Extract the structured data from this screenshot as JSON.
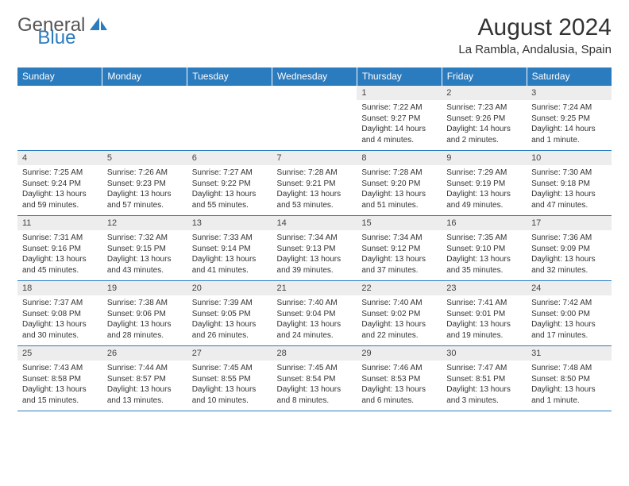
{
  "logo": {
    "text1": "General",
    "text2": "Blue"
  },
  "title": "August 2024",
  "subtitle": "La Rambla, Andalusia, Spain",
  "colors": {
    "headerBg": "#2b7bbf",
    "dayBg": "#ededed",
    "border": "#2b7bbf",
    "text": "#333"
  },
  "dayHeaders": [
    "Sunday",
    "Monday",
    "Tuesday",
    "Wednesday",
    "Thursday",
    "Friday",
    "Saturday"
  ],
  "weeks": [
    [
      null,
      null,
      null,
      null,
      {
        "n": "1",
        "sr": "7:22 AM",
        "ss": "9:27 PM",
        "dl": "14 hours and 4 minutes."
      },
      {
        "n": "2",
        "sr": "7:23 AM",
        "ss": "9:26 PM",
        "dl": "14 hours and 2 minutes."
      },
      {
        "n": "3",
        "sr": "7:24 AM",
        "ss": "9:25 PM",
        "dl": "14 hours and 1 minute."
      }
    ],
    [
      {
        "n": "4",
        "sr": "7:25 AM",
        "ss": "9:24 PM",
        "dl": "13 hours and 59 minutes."
      },
      {
        "n": "5",
        "sr": "7:26 AM",
        "ss": "9:23 PM",
        "dl": "13 hours and 57 minutes."
      },
      {
        "n": "6",
        "sr": "7:27 AM",
        "ss": "9:22 PM",
        "dl": "13 hours and 55 minutes."
      },
      {
        "n": "7",
        "sr": "7:28 AM",
        "ss": "9:21 PM",
        "dl": "13 hours and 53 minutes."
      },
      {
        "n": "8",
        "sr": "7:28 AM",
        "ss": "9:20 PM",
        "dl": "13 hours and 51 minutes."
      },
      {
        "n": "9",
        "sr": "7:29 AM",
        "ss": "9:19 PM",
        "dl": "13 hours and 49 minutes."
      },
      {
        "n": "10",
        "sr": "7:30 AM",
        "ss": "9:18 PM",
        "dl": "13 hours and 47 minutes."
      }
    ],
    [
      {
        "n": "11",
        "sr": "7:31 AM",
        "ss": "9:16 PM",
        "dl": "13 hours and 45 minutes."
      },
      {
        "n": "12",
        "sr": "7:32 AM",
        "ss": "9:15 PM",
        "dl": "13 hours and 43 minutes."
      },
      {
        "n": "13",
        "sr": "7:33 AM",
        "ss": "9:14 PM",
        "dl": "13 hours and 41 minutes."
      },
      {
        "n": "14",
        "sr": "7:34 AM",
        "ss": "9:13 PM",
        "dl": "13 hours and 39 minutes."
      },
      {
        "n": "15",
        "sr": "7:34 AM",
        "ss": "9:12 PM",
        "dl": "13 hours and 37 minutes."
      },
      {
        "n": "16",
        "sr": "7:35 AM",
        "ss": "9:10 PM",
        "dl": "13 hours and 35 minutes."
      },
      {
        "n": "17",
        "sr": "7:36 AM",
        "ss": "9:09 PM",
        "dl": "13 hours and 32 minutes."
      }
    ],
    [
      {
        "n": "18",
        "sr": "7:37 AM",
        "ss": "9:08 PM",
        "dl": "13 hours and 30 minutes."
      },
      {
        "n": "19",
        "sr": "7:38 AM",
        "ss": "9:06 PM",
        "dl": "13 hours and 28 minutes."
      },
      {
        "n": "20",
        "sr": "7:39 AM",
        "ss": "9:05 PM",
        "dl": "13 hours and 26 minutes."
      },
      {
        "n": "21",
        "sr": "7:40 AM",
        "ss": "9:04 PM",
        "dl": "13 hours and 24 minutes."
      },
      {
        "n": "22",
        "sr": "7:40 AM",
        "ss": "9:02 PM",
        "dl": "13 hours and 22 minutes."
      },
      {
        "n": "23",
        "sr": "7:41 AM",
        "ss": "9:01 PM",
        "dl": "13 hours and 19 minutes."
      },
      {
        "n": "24",
        "sr": "7:42 AM",
        "ss": "9:00 PM",
        "dl": "13 hours and 17 minutes."
      }
    ],
    [
      {
        "n": "25",
        "sr": "7:43 AM",
        "ss": "8:58 PM",
        "dl": "13 hours and 15 minutes."
      },
      {
        "n": "26",
        "sr": "7:44 AM",
        "ss": "8:57 PM",
        "dl": "13 hours and 13 minutes."
      },
      {
        "n": "27",
        "sr": "7:45 AM",
        "ss": "8:55 PM",
        "dl": "13 hours and 10 minutes."
      },
      {
        "n": "28",
        "sr": "7:45 AM",
        "ss": "8:54 PM",
        "dl": "13 hours and 8 minutes."
      },
      {
        "n": "29",
        "sr": "7:46 AM",
        "ss": "8:53 PM",
        "dl": "13 hours and 6 minutes."
      },
      {
        "n": "30",
        "sr": "7:47 AM",
        "ss": "8:51 PM",
        "dl": "13 hours and 3 minutes."
      },
      {
        "n": "31",
        "sr": "7:48 AM",
        "ss": "8:50 PM",
        "dl": "13 hours and 1 minute."
      }
    ]
  ],
  "labels": {
    "sunrise": "Sunrise: ",
    "sunset": "Sunset: ",
    "daylight": "Daylight: "
  }
}
